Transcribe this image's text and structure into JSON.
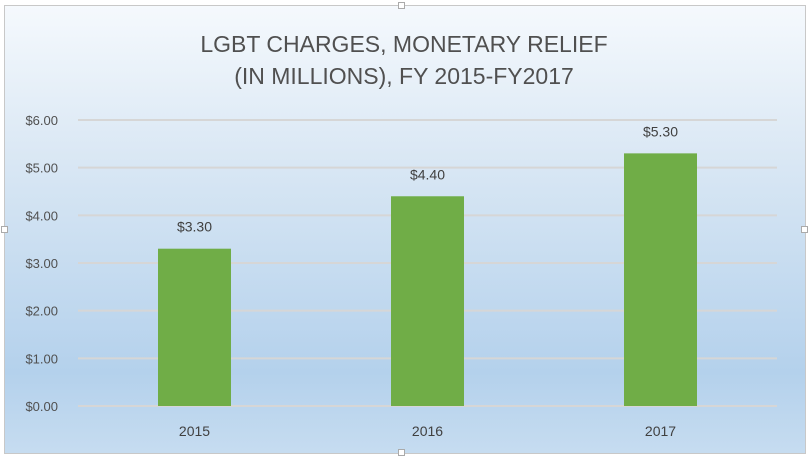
{
  "chart_data": {
    "type": "bar",
    "title_lines": [
      "LGBT CHARGES, MONETARY RELIEF",
      "(IN MILLIONS), FY 2015-FY2017"
    ],
    "categories": [
      "2015",
      "2016",
      "2017"
    ],
    "values": [
      3.3,
      4.4,
      5.3
    ],
    "data_labels": [
      "$3.30",
      "$4.40",
      "$5.30"
    ],
    "y_ticks": [
      0,
      1,
      2,
      3,
      4,
      5,
      6
    ],
    "y_tick_labels": [
      "$0.00",
      "$1.00",
      "$2.00",
      "$3.00",
      "$4.00",
      "$5.00",
      "$6.00"
    ],
    "ylim": [
      0,
      6
    ],
    "xlabel": "",
    "ylabel": "",
    "grid": true,
    "legend": "none",
    "bar_color": "#70ad47"
  }
}
